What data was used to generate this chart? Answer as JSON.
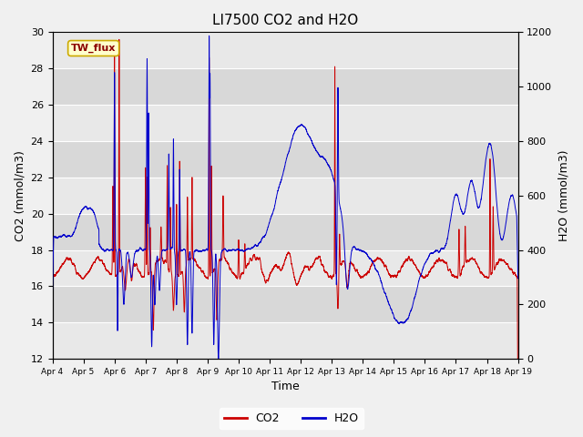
{
  "title": "LI7500 CO2 and H2O",
  "xlabel": "Time",
  "ylabel_left": "CO2 (mmol/m3)",
  "ylabel_right": "H2O (mmol/m3)",
  "ylim_left": [
    12,
    30
  ],
  "ylim_right": [
    0,
    1200
  ],
  "yticks_left": [
    12,
    14,
    16,
    18,
    20,
    22,
    24,
    26,
    28,
    30
  ],
  "yticks_right": [
    0,
    200,
    400,
    600,
    800,
    1000,
    1200
  ],
  "xtick_labels": [
    "Apr 4",
    "Apr 5",
    "Apr 6",
    "Apr 7",
    "Apr 8",
    "Apr 9",
    "Apr 10",
    "Apr 11",
    "Apr 12",
    "Apr 13",
    "Apr 14",
    "Apr 15",
    "Apr 16",
    "Apr 17",
    "Apr 18",
    "Apr 19"
  ],
  "legend_label_co2": "CO2",
  "legend_label_h2o": "H2O",
  "co2_color": "#cc0000",
  "h2o_color": "#0000cc",
  "annotation_text": "TW_flux",
  "band_colors": [
    "#e8e8e8",
    "#d8d8d8"
  ],
  "title_fontsize": 11,
  "label_fontsize": 9,
  "tick_fontsize": 8
}
